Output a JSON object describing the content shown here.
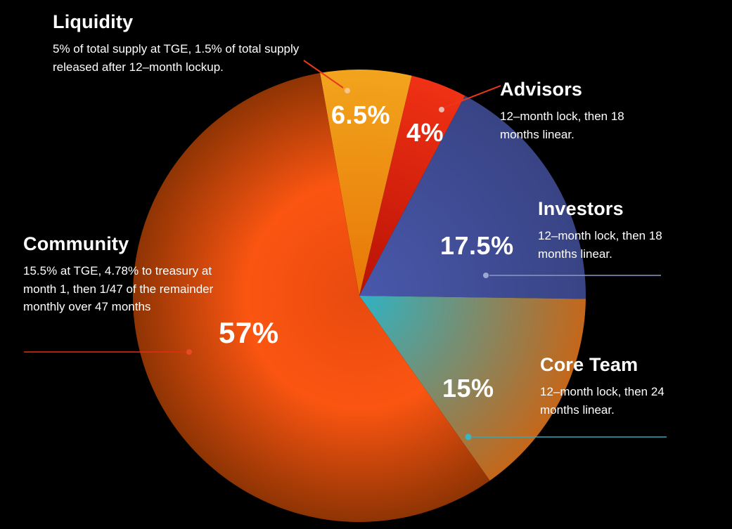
{
  "page": {
    "background": "#000000",
    "text_color": "#ffffff"
  },
  "chart_data": {
    "type": "pie",
    "title": "",
    "legend_position": "callouts",
    "start_angle_deg": -10,
    "unit": "%",
    "slices": [
      {
        "label": "Liquidity",
        "value": 6.5,
        "pct_label": "6.5%",
        "desc": "5% of total supply at TGE, 1.5% of total supply released after 12–month lockup.",
        "colors": [
          "#e87607",
          "#f2a41d"
        ],
        "line_color": "#e8391f",
        "dot_color": "#f6c48e"
      },
      {
        "label": "Advisors",
        "value": 4,
        "pct_label": "4%",
        "desc": "12–month lock, then 18 months linear.",
        "colors": [
          "#b81205",
          "#f03114"
        ],
        "line_color": "#e8391f",
        "dot_color": "#f0b6ac"
      },
      {
        "label": "Investors",
        "value": 17.5,
        "pct_label": "17.5%",
        "desc": "12–month lock, then 18 months linear.",
        "colors": [
          "#4a58ac",
          "#384484"
        ],
        "line_color": "#8a99c4",
        "dot_color": "#9aa8d0"
      },
      {
        "label": "Core Team",
        "value": 15,
        "pct_label": "15%",
        "desc": "12–month lock, then 24 months linear.",
        "colors": [
          "#2fb3c4",
          "#c4671a"
        ],
        "line_color": "#2fa9ba",
        "dot_color": "#38b6c4"
      },
      {
        "label": "Community",
        "value": 57,
        "pct_label": "57%",
        "desc": "15.5% at TGE, 4.78% to treasury at month 1, then 1/47 of the remainder monthly over 47 months",
        "colors": [
          "#e84a10",
          "#fb5511",
          "#8f3404"
        ],
        "line_color": "#df2f17",
        "dot_color": "#ea4a22"
      }
    ]
  }
}
